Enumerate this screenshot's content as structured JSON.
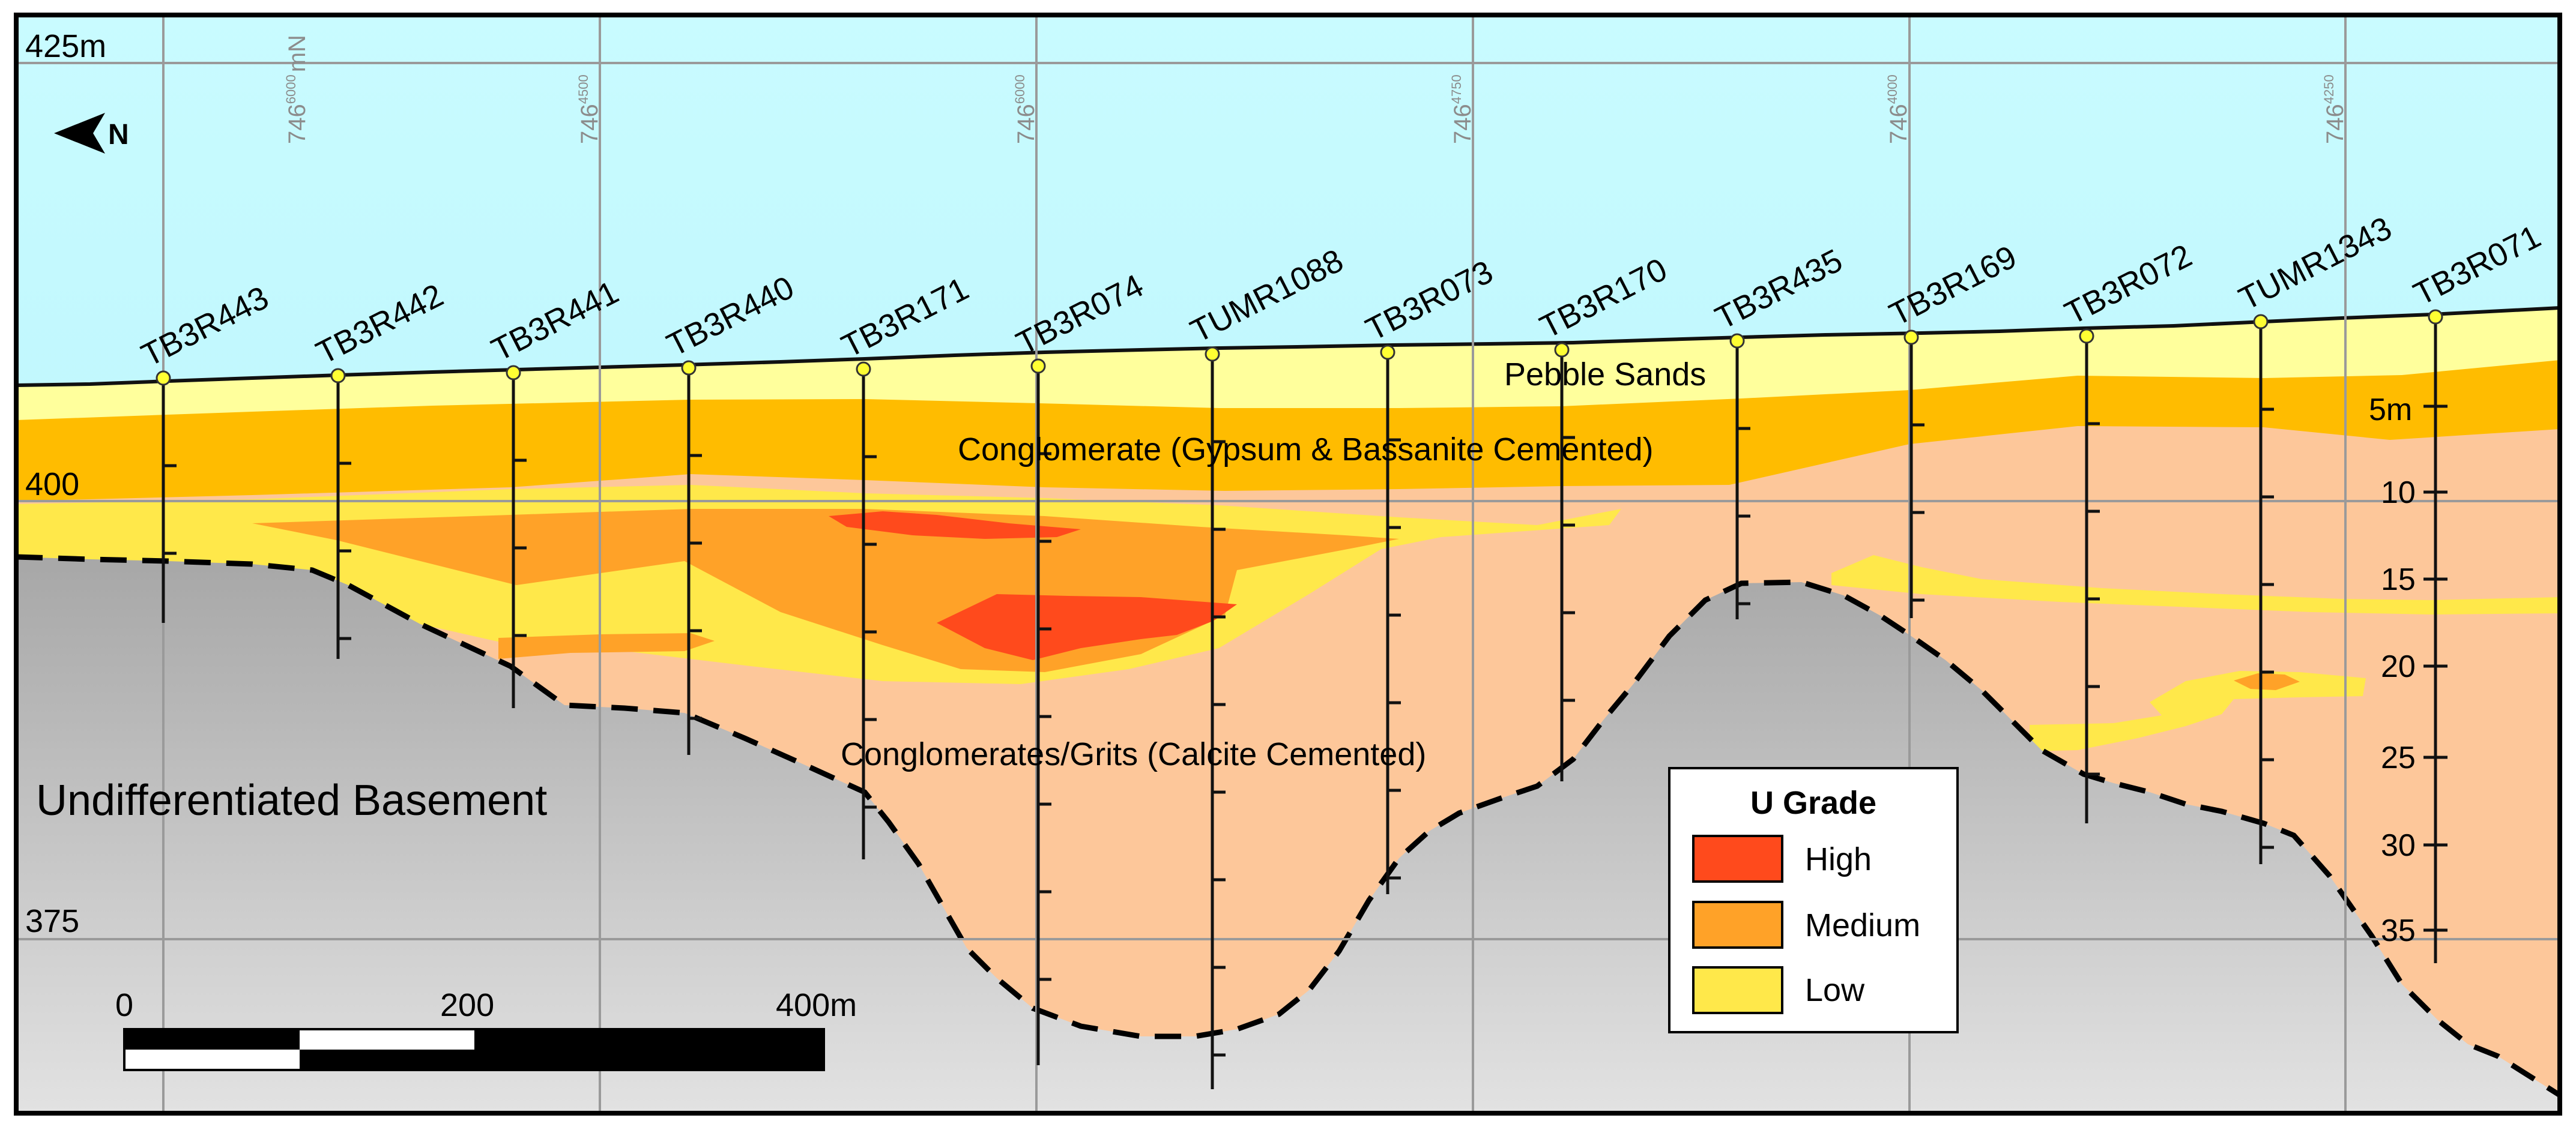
{
  "elevation_labels": [
    "425m",
    "400",
    "375"
  ],
  "depth_labels": [
    "5m",
    "10",
    "15",
    "20",
    "25",
    "30",
    "35"
  ],
  "northing_labels": [
    {
      "main": "746",
      "sup": "6000",
      "unit": "mN"
    },
    {
      "main": "746",
      "sup": "4500",
      "unit": ""
    },
    {
      "main": "746",
      "sup": "6000",
      "unit": ""
    },
    {
      "main": "746",
      "sup": "4750",
      "unit": ""
    },
    {
      "main": "746",
      "sup": "4000",
      "unit": ""
    },
    {
      "main": "746",
      "sup": "4250",
      "unit": ""
    }
  ],
  "north_arrow_label": "N",
  "drillholes": [
    "TB3R443",
    "TB3R442",
    "TB3R441",
    "TB3R440",
    "TB3R171",
    "TB3R074",
    "TUMR1088",
    "TB3R073",
    "TB3R170",
    "TB3R435",
    "TB3R169",
    "TB3R072",
    "TUMR1343",
    "TB3R071"
  ],
  "units": {
    "pebble_sands": "Pebble Sands",
    "conglomerate": "Conglomerate (Gypsum & Bassanite Cemented)",
    "grits": "Conglomerates/Grits (Calcite Cemented)",
    "basement": "Undifferentiated Basement"
  },
  "legend": {
    "title": "U Grade",
    "items": [
      {
        "label": "High",
        "color": "#ff4a1c"
      },
      {
        "label": "Medium",
        "color": "#ffa228"
      },
      {
        "label": "Low",
        "color": "#ffe84a"
      }
    ]
  },
  "scale_bar": {
    "labels": [
      "0",
      "200",
      "400m"
    ]
  },
  "colors": {
    "sky": "#cffcff",
    "pebble_sands": "#ffff9c",
    "conglomerate": "#ffbc00",
    "grits": "#fdc79a",
    "basement": "#b8b8b8"
  }
}
